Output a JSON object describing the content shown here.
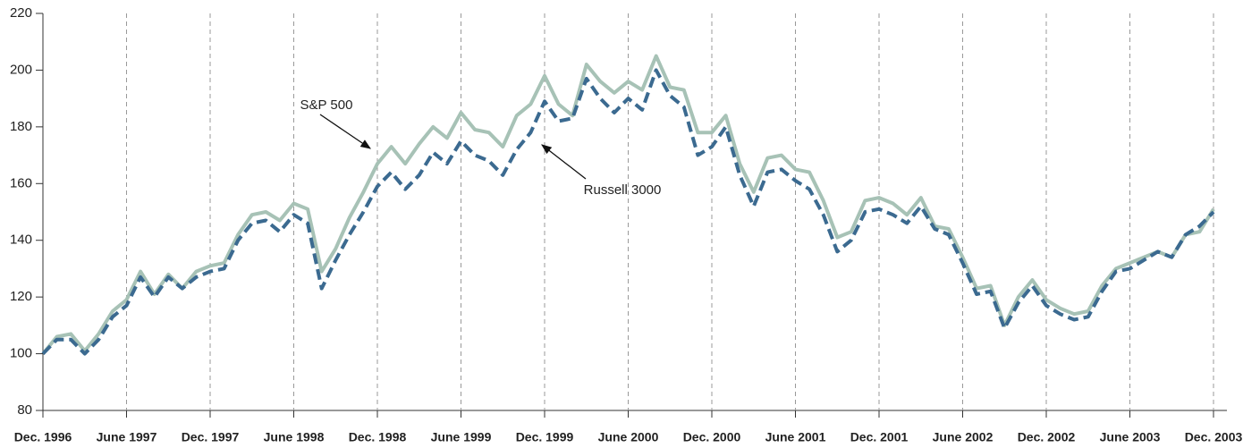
{
  "chart_data": {
    "type": "line",
    "categories": [
      "Dec. 1996",
      null,
      null,
      null,
      null,
      null,
      "June 1997",
      null,
      null,
      null,
      null,
      null,
      "Dec. 1997",
      null,
      null,
      null,
      null,
      null,
      "June 1998",
      null,
      null,
      null,
      null,
      null,
      "Dec. 1998",
      null,
      null,
      null,
      null,
      null,
      "June 1999",
      null,
      null,
      null,
      null,
      null,
      "Dec. 1999",
      null,
      null,
      null,
      null,
      null,
      "June 2000",
      null,
      null,
      null,
      null,
      null,
      "Dec. 2000",
      null,
      null,
      null,
      null,
      null,
      "June 2001",
      null,
      null,
      null,
      null,
      null,
      "Dec. 2001",
      null,
      null,
      null,
      null,
      null,
      "June 2002",
      null,
      null,
      null,
      null,
      null,
      "Dec. 2002",
      null,
      null,
      null,
      null,
      null,
      "June 2003",
      null,
      null,
      null,
      null,
      null,
      "Dec. 2003"
    ],
    "series": [
      {
        "name": "S&P 500",
        "color": "#a7c2b6",
        "values": [
          100,
          106,
          107,
          101,
          107,
          115,
          119,
          129,
          121,
          128,
          123,
          129,
          131,
          132,
          142,
          149,
          150,
          147,
          153,
          151,
          129,
          137,
          148,
          157,
          167,
          173,
          167,
          174,
          180,
          176,
          185,
          179,
          178,
          173,
          184,
          188,
          198,
          188,
          184,
          202,
          196,
          192,
          196,
          193,
          205,
          194,
          193,
          178,
          178,
          184,
          167,
          157,
          169,
          170,
          165,
          164,
          154,
          141,
          143,
          154,
          155,
          153,
          149,
          155,
          145,
          144,
          134,
          123,
          124,
          110,
          120,
          126,
          119,
          116,
          114,
          115,
          124,
          130,
          132,
          134,
          136,
          134,
          142,
          143,
          151
        ]
      },
      {
        "name": "Russell 3000",
        "color": "#3b6a90",
        "values": [
          100,
          105,
          105,
          100,
          105,
          113,
          117,
          127,
          120,
          127,
          123,
          127,
          129,
          130,
          140,
          146,
          147,
          143,
          149,
          146,
          123,
          133,
          142,
          150,
          159,
          164,
          158,
          163,
          171,
          167,
          175,
          170,
          168,
          163,
          172,
          178,
          189,
          182,
          183,
          197,
          190,
          185,
          190,
          186,
          200,
          191,
          187,
          170,
          173,
          180,
          163,
          152,
          164,
          165,
          161,
          158,
          149,
          136,
          140,
          150,
          151,
          149,
          146,
          152,
          144,
          142,
          132,
          121,
          122,
          109,
          118,
          124,
          117,
          114,
          112,
          113,
          122,
          129,
          130,
          133,
          136,
          134,
          142,
          145,
          150
        ]
      }
    ],
    "ylim": [
      80,
      220
    ],
    "yticks": [
      80,
      100,
      120,
      140,
      160,
      180,
      200,
      220
    ],
    "grid": true
  }
}
